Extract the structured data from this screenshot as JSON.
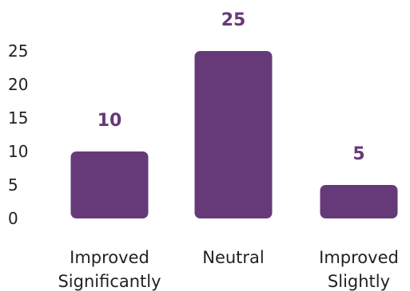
{
  "chart_data": {
    "type": "bar",
    "categories": [
      [
        "Improved",
        "Significantly"
      ],
      [
        "Neutral"
      ],
      [
        "Improved",
        "Slightly"
      ]
    ],
    "values": [
      10,
      25,
      5
    ],
    "y_ticks": [
      0,
      5,
      10,
      15,
      20,
      25
    ],
    "ylim": [
      0,
      25
    ],
    "grid": false,
    "legend": "none",
    "colors": {
      "bar": "#663a78",
      "data_label": "#663a78",
      "text": "#222222"
    }
  }
}
